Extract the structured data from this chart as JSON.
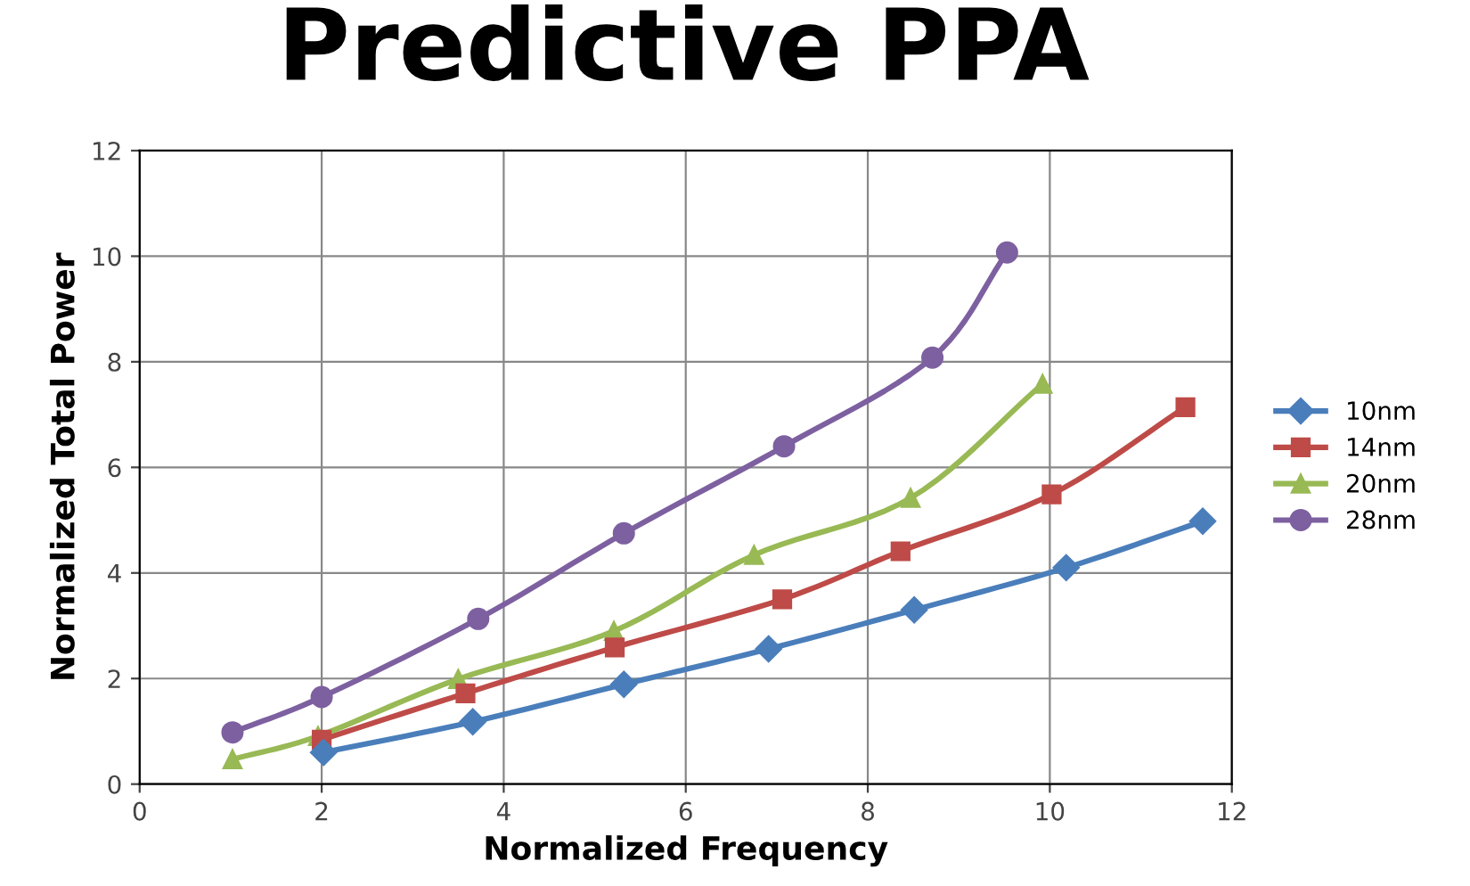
{
  "chart_data": {
    "type": "line",
    "title": "Predictive PPA",
    "xlabel": "Normalized Frequency",
    "ylabel": "Normalized Total Power",
    "xlim": [
      0,
      12
    ],
    "ylim": [
      0,
      12
    ],
    "xticks": [
      0,
      2,
      4,
      6,
      8,
      10,
      12
    ],
    "yticks": [
      0,
      2,
      4,
      6,
      8,
      10,
      12
    ],
    "grid": true,
    "legend": "right",
    "line_style": "solid",
    "series": [
      {
        "name": "10nm",
        "color": "#4a7ebb",
        "marker": "diamond",
        "x": [
          2.02,
          3.66,
          5.32,
          6.91,
          8.51,
          10.18,
          11.68
        ],
        "values": [
          0.6,
          1.18,
          1.89,
          2.56,
          3.3,
          4.1,
          4.98
        ]
      },
      {
        "name": "14nm",
        "color": "#be4b48",
        "marker": "square",
        "x": [
          2.0,
          3.58,
          5.22,
          7.06,
          8.36,
          10.02,
          11.49
        ],
        "values": [
          0.84,
          1.72,
          2.59,
          3.5,
          4.41,
          5.49,
          7.14
        ]
      },
      {
        "name": "20nm",
        "color": "#98b954",
        "marker": "triangle",
        "x": [
          1.02,
          1.96,
          3.5,
          5.21,
          6.75,
          8.47,
          9.92
        ],
        "values": [
          0.47,
          0.91,
          1.99,
          2.9,
          4.34,
          5.42,
          7.58
        ]
      },
      {
        "name": "28nm",
        "color": "#7d60a0",
        "marker": "circle",
        "x": [
          1.02,
          2.0,
          3.72,
          5.32,
          7.08,
          8.71,
          9.53
        ],
        "values": [
          0.98,
          1.65,
          3.13,
          4.75,
          6.4,
          8.08,
          10.07
        ]
      }
    ]
  }
}
